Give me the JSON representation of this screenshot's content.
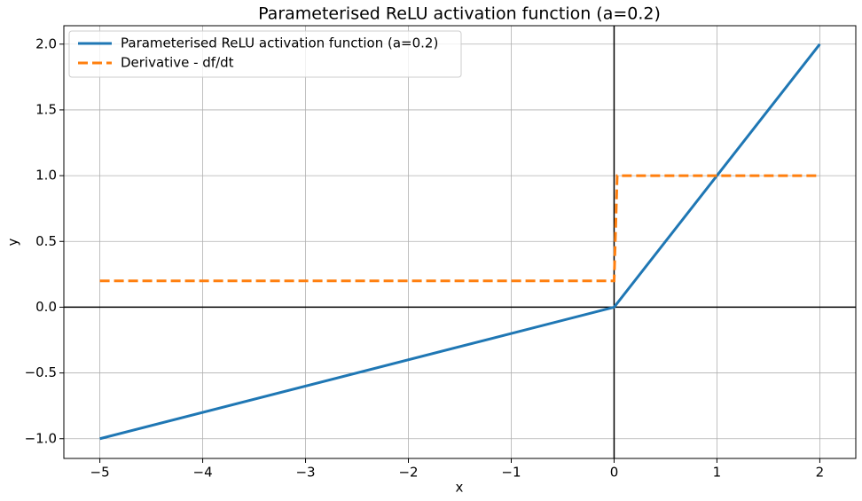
{
  "chart_data": {
    "type": "line",
    "title": "Parameterised ReLU activation function (a=0.2)",
    "x_label": "x",
    "y_label": "y",
    "series": [
      {
        "name": "Parameterised ReLU activation function (a=0.2)",
        "color": "#1f77b4",
        "linestyle": "solid",
        "x": [
          -5,
          0,
          2
        ],
        "values": [
          -1,
          0,
          2
        ]
      },
      {
        "name": "Derivative - df/dt",
        "color": "#ff7f0e",
        "linestyle": "dashed",
        "x": [
          -5,
          0,
          0.03,
          2
        ],
        "values": [
          0.2,
          0.2,
          1,
          1
        ]
      }
    ],
    "xlim": [
      -5.35,
      2.35
    ],
    "ylim": [
      -1.15,
      2.14
    ],
    "xticks": [
      {
        "value": -5,
        "label": "−5"
      },
      {
        "value": -4,
        "label": "−4"
      },
      {
        "value": -3,
        "label": "−3"
      },
      {
        "value": -2,
        "label": "−2"
      },
      {
        "value": -1,
        "label": "−1"
      },
      0,
      1,
      2
    ],
    "yticks": [
      {
        "value": -1,
        "label": "−1.0"
      },
      {
        "value": -0.5,
        "label": "−0.5"
      },
      {
        "value": 0,
        "label": "0.0"
      },
      {
        "value": 0.5,
        "label": "0.5"
      },
      {
        "value": 1,
        "label": "1.0"
      },
      {
        "value": 1.5,
        "label": "1.5"
      },
      {
        "value": 2,
        "label": "2.0"
      }
    ],
    "grid": true,
    "zero_lines": true,
    "legend": "upper-left"
  }
}
